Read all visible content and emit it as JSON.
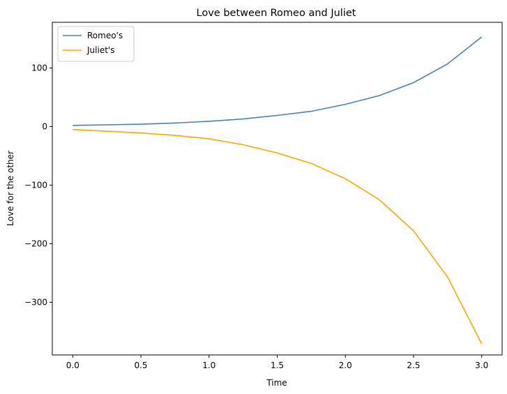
{
  "chart_data": {
    "type": "line",
    "title": "Love between Romeo and Juliet",
    "xlabel": "Time",
    "ylabel": "Love for the other",
    "xlim": [
      -0.15,
      3.15
    ],
    "ylim": [
      -390,
      178
    ],
    "xticks": [
      0.0,
      0.5,
      1.0,
      1.5,
      2.0,
      2.5,
      3.0
    ],
    "xtick_labels": [
      "0.0",
      "0.5",
      "1.0",
      "1.5",
      "2.0",
      "2.5",
      "3.0"
    ],
    "yticks": [
      100,
      0,
      -100,
      -200,
      -300
    ],
    "ytick_labels": [
      "100",
      "0",
      "−100",
      "−200",
      "−300"
    ],
    "grid": false,
    "legend_position": "top-left",
    "x": [
      0.0,
      0.25,
      0.5,
      0.75,
      1.0,
      1.25,
      1.5,
      1.75,
      2.0,
      2.25,
      2.5,
      2.75,
      3.0
    ],
    "series": [
      {
        "name": "Romeo's",
        "color": "#4682b4",
        "values": [
          2,
          3,
          4,
          6,
          9,
          13,
          19,
          26,
          38,
          53,
          75,
          107,
          153
        ]
      },
      {
        "name": "Juliet's",
        "color": "#ffa500",
        "values": [
          -5,
          -8,
          -11,
          -15,
          -21,
          -31,
          -45,
          -63,
          -89,
          -125,
          -178,
          -257,
          -371
        ]
      }
    ]
  }
}
